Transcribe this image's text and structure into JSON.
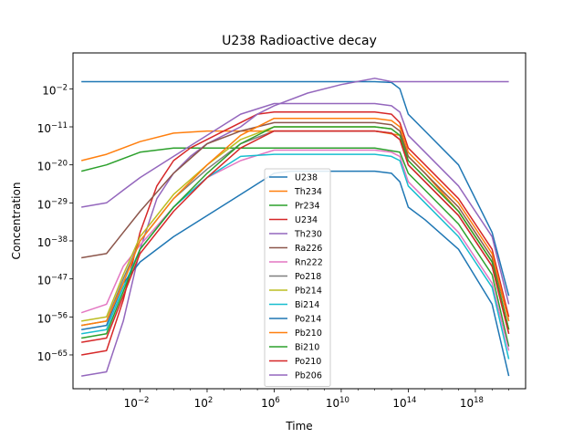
{
  "chart_data": {
    "type": "line",
    "title": "U238 Radioactive decay",
    "xlabel": "Time",
    "ylabel": "Concentration",
    "xscale": "log",
    "yscale": "log",
    "xlim_log10": [
      -6,
      21
    ],
    "ylim_log10": [
      -73,
      6.5
    ],
    "xticks": [
      {
        "exp": -2,
        "base": "10",
        "sup": "−2"
      },
      {
        "exp": 2,
        "base": "10",
        "sup": "2"
      },
      {
        "exp": 6,
        "base": "10",
        "sup": "6"
      },
      {
        "exp": 10,
        "base": "10",
        "sup": "10"
      },
      {
        "exp": 14,
        "base": "10",
        "sup": "14"
      },
      {
        "exp": 18,
        "base": "10",
        "sup": "18"
      }
    ],
    "yticks": [
      {
        "exp": -65,
        "base": "10",
        "sup": "−65"
      },
      {
        "exp": -56,
        "base": "10",
        "sup": "−56"
      },
      {
        "exp": -47,
        "base": "10",
        "sup": "−47"
      },
      {
        "exp": -38,
        "base": "10",
        "sup": "−38"
      },
      {
        "exp": -29,
        "base": "10",
        "sup": "−29"
      },
      {
        "exp": -20,
        "base": "10",
        "sup": "−20"
      },
      {
        "exp": -11,
        "base": "10",
        "sup": "−11"
      },
      {
        "exp": -2,
        "base": "10",
        "sup": "−2"
      }
    ],
    "grid": false,
    "legend_position": "lower center",
    "series": [
      {
        "name": "U238",
        "color": "#1f77b4",
        "points": [
          [
            -5.5,
            -0.3
          ],
          [
            12,
            -0.3
          ],
          [
            13,
            -0.5
          ],
          [
            13.5,
            -2
          ],
          [
            14,
            -8
          ],
          [
            15,
            -12
          ],
          [
            17,
            -20
          ],
          [
            19,
            -36
          ],
          [
            20,
            -51
          ]
        ]
      },
      {
        "name": "Th234",
        "color": "#ff7f0e",
        "points": [
          [
            -5.5,
            -19
          ],
          [
            -4,
            -17.5
          ],
          [
            -2,
            -14.5
          ],
          [
            0,
            -12.5
          ],
          [
            2,
            -12
          ],
          [
            12,
            -12
          ],
          [
            13.5,
            -13
          ],
          [
            14,
            -18
          ],
          [
            15,
            -22
          ],
          [
            17,
            -31
          ],
          [
            19,
            -43
          ],
          [
            20,
            -59
          ]
        ]
      },
      {
        "name": "Pr234",
        "color": "#2ca02c",
        "points": [
          [
            -5.5,
            -21.5
          ],
          [
            -4,
            -20
          ],
          [
            -2,
            -17
          ],
          [
            0,
            -16
          ],
          [
            2,
            -16
          ],
          [
            12,
            -16
          ],
          [
            13.5,
            -17
          ],
          [
            14,
            -22
          ],
          [
            15,
            -26
          ],
          [
            17,
            -34
          ],
          [
            19,
            -46
          ],
          [
            20,
            -63
          ]
        ]
      },
      {
        "name": "U234",
        "color": "#d62728",
        "points": [
          [
            -5.5,
            -65
          ],
          [
            -4,
            -64
          ],
          [
            -3,
            -52
          ],
          [
            -2,
            -36
          ],
          [
            -1,
            -25
          ],
          [
            0,
            -19
          ],
          [
            1,
            -16
          ],
          [
            3,
            -12
          ],
          [
            5,
            -8
          ],
          [
            6,
            -7.5
          ],
          [
            12,
            -7.5
          ],
          [
            13,
            -8
          ],
          [
            13.5,
            -10
          ],
          [
            14,
            -16
          ],
          [
            15,
            -20
          ],
          [
            17,
            -28
          ],
          [
            19,
            -40
          ],
          [
            20,
            -56
          ]
        ]
      },
      {
        "name": "Th230",
        "color": "#9467bd",
        "points": [
          [
            -5.5,
            -70
          ],
          [
            -4,
            -69
          ],
          [
            -3,
            -57
          ],
          [
            -2,
            -40
          ],
          [
            -1,
            -28
          ],
          [
            0,
            -22
          ],
          [
            1,
            -18
          ],
          [
            2,
            -15
          ],
          [
            4,
            -11
          ],
          [
            5,
            -8
          ],
          [
            6,
            -6
          ],
          [
            8,
            -3
          ],
          [
            10,
            -1
          ],
          [
            12,
            0.5
          ],
          [
            13,
            -0.3
          ],
          [
            14,
            -0.3
          ],
          [
            20,
            -0.3
          ]
        ]
      },
      {
        "name": "Ra226",
        "color": "#8c564b",
        "points": [
          [
            -5.5,
            -42
          ],
          [
            -4,
            -41
          ],
          [
            -3,
            -36
          ],
          [
            -2,
            -31
          ],
          [
            0,
            -22
          ],
          [
            2,
            -15
          ],
          [
            4,
            -12
          ],
          [
            6,
            -10
          ],
          [
            12,
            -10
          ],
          [
            13,
            -10.5
          ],
          [
            13.5,
            -12
          ],
          [
            14,
            -18
          ],
          [
            15,
            -22
          ],
          [
            17,
            -30
          ],
          [
            19,
            -42
          ],
          [
            20,
            -57
          ]
        ]
      },
      {
        "name": "Rn222",
        "color": "#e377c2",
        "points": [
          [
            -5.5,
            -55
          ],
          [
            -4,
            -53
          ],
          [
            -3,
            -44
          ],
          [
            -2,
            -39
          ],
          [
            0,
            -30
          ],
          [
            2,
            -23
          ],
          [
            4,
            -19
          ],
          [
            6,
            -16.5
          ],
          [
            12,
            -16.5
          ],
          [
            13,
            -17
          ],
          [
            13.5,
            -18
          ],
          [
            14,
            -24
          ],
          [
            15,
            -28
          ],
          [
            17,
            -36
          ],
          [
            19,
            -48
          ],
          [
            20,
            -64
          ]
        ]
      },
      {
        "name": "Po218",
        "color": "#7f7f7f",
        "points": [
          [
            -5.5,
            -58
          ],
          [
            -4,
            -57
          ],
          [
            -3,
            -47
          ],
          [
            -2,
            -38
          ],
          [
            0,
            -28
          ],
          [
            2,
            -21
          ],
          [
            4,
            -15
          ],
          [
            6,
            -12
          ],
          [
            12,
            -12
          ],
          [
            13,
            -12.5
          ],
          [
            13.5,
            -14
          ],
          [
            14,
            -20
          ],
          [
            15,
            -24
          ],
          [
            17,
            -32
          ],
          [
            19,
            -44
          ],
          [
            20,
            -60
          ]
        ]
      },
      {
        "name": "Pb214",
        "color": "#bcbd22",
        "points": [
          [
            -5.5,
            -57
          ],
          [
            -4,
            -56
          ],
          [
            -3,
            -46
          ],
          [
            -2,
            -37
          ],
          [
            0,
            -27
          ],
          [
            2,
            -20
          ],
          [
            4,
            -14
          ],
          [
            6,
            -11
          ],
          [
            12,
            -11
          ],
          [
            13,
            -11.5
          ],
          [
            13.5,
            -13
          ],
          [
            14,
            -19
          ],
          [
            15,
            -23
          ],
          [
            17,
            -31
          ],
          [
            19,
            -43
          ],
          [
            20,
            -59
          ]
        ]
      },
      {
        "name": "Bi214",
        "color": "#17becf",
        "points": [
          [
            -5.5,
            -60
          ],
          [
            -4,
            -59
          ],
          [
            -3,
            -49
          ],
          [
            -2,
            -40
          ],
          [
            0,
            -30
          ],
          [
            2,
            -23
          ],
          [
            4,
            -18
          ],
          [
            6,
            -17.5
          ],
          [
            12,
            -17.5
          ],
          [
            13,
            -18
          ],
          [
            13.5,
            -19
          ],
          [
            14,
            -25
          ],
          [
            15,
            -29
          ],
          [
            17,
            -37
          ],
          [
            19,
            -49
          ],
          [
            20,
            -66
          ]
        ]
      },
      {
        "name": "Po214",
        "color": "#1f77b4",
        "points": [
          [
            -5.5,
            -59
          ],
          [
            -4,
            -58
          ],
          [
            -3,
            -48
          ],
          [
            -2,
            -43
          ],
          [
            0,
            -37
          ],
          [
            2,
            -32
          ],
          [
            4,
            -27
          ],
          [
            6,
            -22
          ],
          [
            7,
            -21.5
          ],
          [
            12,
            -21.5
          ],
          [
            13,
            -22
          ],
          [
            13.5,
            -24
          ],
          [
            14,
            -30
          ],
          [
            15,
            -33
          ],
          [
            17,
            -40
          ],
          [
            19,
            -53
          ],
          [
            20,
            -70
          ]
        ]
      },
      {
        "name": "Pb210",
        "color": "#ff7f0e",
        "points": [
          [
            -5.5,
            -58
          ],
          [
            -4,
            -57
          ],
          [
            -3,
            -48
          ],
          [
            -2,
            -38
          ],
          [
            0,
            -28
          ],
          [
            2,
            -20
          ],
          [
            4,
            -13
          ],
          [
            6,
            -9
          ],
          [
            12,
            -9
          ],
          [
            13,
            -9.5
          ],
          [
            13.5,
            -11
          ],
          [
            14,
            -17
          ],
          [
            15,
            -21
          ],
          [
            17,
            -29
          ],
          [
            19,
            -41
          ],
          [
            20,
            -57
          ]
        ]
      },
      {
        "name": "Bi210",
        "color": "#2ca02c",
        "points": [
          [
            -5.5,
            -61
          ],
          [
            -4,
            -60
          ],
          [
            -3,
            -50
          ],
          [
            -2,
            -40
          ],
          [
            0,
            -30
          ],
          [
            2,
            -22
          ],
          [
            4,
            -15
          ],
          [
            6,
            -11
          ],
          [
            12,
            -11
          ],
          [
            13,
            -11.5
          ],
          [
            13.5,
            -13
          ],
          [
            14,
            -19
          ],
          [
            15,
            -23
          ],
          [
            17,
            -31
          ],
          [
            19,
            -43
          ],
          [
            20,
            -59
          ]
        ]
      },
      {
        "name": "Po210",
        "color": "#d62728",
        "points": [
          [
            -5.5,
            -62
          ],
          [
            -4,
            -61
          ],
          [
            -3,
            -51
          ],
          [
            -2,
            -41
          ],
          [
            0,
            -31
          ],
          [
            2,
            -23
          ],
          [
            4,
            -16
          ],
          [
            6,
            -12
          ],
          [
            12,
            -12
          ],
          [
            13,
            -12.5
          ],
          [
            13.5,
            -14
          ],
          [
            14,
            -20
          ],
          [
            15,
            -24
          ],
          [
            17,
            -32
          ],
          [
            19,
            -44
          ],
          [
            20,
            -60
          ]
        ]
      },
      {
        "name": "Pb206",
        "color": "#9467bd",
        "points": [
          [
            -5.5,
            -30
          ],
          [
            -4,
            -29
          ],
          [
            -3,
            -26
          ],
          [
            -2,
            -23
          ],
          [
            0,
            -18
          ],
          [
            2,
            -13
          ],
          [
            4,
            -8
          ],
          [
            6,
            -5.5
          ],
          [
            12,
            -5.5
          ],
          [
            13,
            -6
          ],
          [
            13.5,
            -7.5
          ],
          [
            14,
            -13
          ],
          [
            15,
            -17
          ],
          [
            17,
            -25
          ],
          [
            19,
            -37
          ],
          [
            20,
            -53
          ]
        ]
      }
    ]
  }
}
